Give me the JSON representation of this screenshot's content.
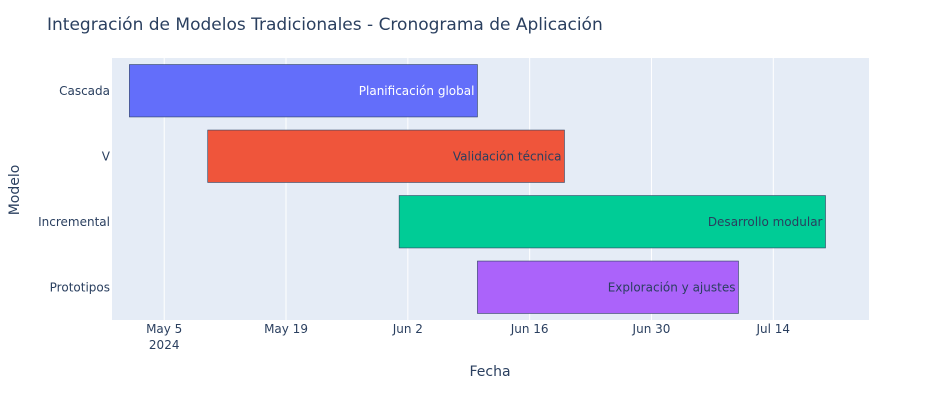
{
  "chart_data": {
    "type": "bar",
    "orientation": "horizontal-timeline",
    "title": "Integración de Modelos Tradicionales - Cronograma de Aplicación",
    "xlabel": "Fecha",
    "ylabel": "Modelo",
    "x_range": [
      "2024-04-29",
      "2024-07-25"
    ],
    "x_ticks": [
      {
        "date": "2024-05-05",
        "label": "May 5",
        "sublabel": "2024"
      },
      {
        "date": "2024-05-19",
        "label": "May 19",
        "sublabel": ""
      },
      {
        "date": "2024-06-02",
        "label": "Jun 2",
        "sublabel": ""
      },
      {
        "date": "2024-06-16",
        "label": "Jun 16",
        "sublabel": ""
      },
      {
        "date": "2024-06-30",
        "label": "Jun 30",
        "sublabel": ""
      },
      {
        "date": "2024-07-14",
        "label": "Jul 14",
        "sublabel": ""
      }
    ],
    "categories": [
      "Cascada",
      "V",
      "Incremental",
      "Prototipos"
    ],
    "tasks": [
      {
        "category": "Cascada",
        "start": "2024-05-01",
        "end": "2024-06-10",
        "label": "Planificación global",
        "color": "#636efa",
        "label_color": "#ffffff"
      },
      {
        "category": "V",
        "start": "2024-05-10",
        "end": "2024-06-20",
        "label": "Validación técnica",
        "color": "#ef553b",
        "label_color": "#2a3f5f"
      },
      {
        "category": "Incremental",
        "start": "2024-06-01",
        "end": "2024-07-20",
        "label": "Desarrollo modular",
        "color": "#00cc96",
        "label_color": "#2a3f5f"
      },
      {
        "category": "Prototipos",
        "start": "2024-06-10",
        "end": "2024-07-10",
        "label": "Exploración y ajustes",
        "color": "#ab63fa",
        "label_color": "#2a3f5f"
      }
    ],
    "grid": true,
    "legend": "none",
    "plot_background": "#e5ecf6",
    "text_color": "#2a3f5f"
  }
}
